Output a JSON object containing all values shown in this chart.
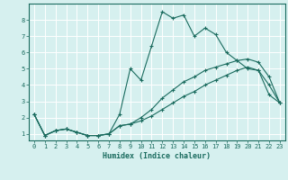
{
  "xlabel": "Humidex (Indice chaleur)",
  "ylabel": "",
  "background_color": "#d6f0ef",
  "grid_color": "#ffffff",
  "line_color": "#1a6b5e",
  "xlim": [
    -0.5,
    23.5
  ],
  "ylim": [
    0.6,
    9.0
  ],
  "yticks": [
    1,
    2,
    3,
    4,
    5,
    6,
    7,
    8
  ],
  "xticks": [
    0,
    1,
    2,
    3,
    4,
    5,
    6,
    7,
    8,
    9,
    10,
    11,
    12,
    13,
    14,
    15,
    16,
    17,
    18,
    19,
    20,
    21,
    22,
    23
  ],
  "line1_x": [
    0,
    1,
    2,
    3,
    4,
    5,
    6,
    7,
    8,
    9,
    10,
    11,
    12,
    13,
    14,
    15,
    16,
    17,
    18,
    19,
    20,
    21,
    22,
    23
  ],
  "line1_y": [
    2.2,
    0.9,
    1.2,
    1.3,
    1.1,
    0.9,
    0.9,
    1.0,
    2.2,
    5.0,
    4.3,
    6.4,
    8.5,
    8.1,
    8.3,
    7.0,
    7.5,
    7.1,
    6.0,
    5.5,
    5.0,
    4.9,
    3.4,
    2.9
  ],
  "line2_x": [
    0,
    1,
    2,
    3,
    4,
    5,
    6,
    7,
    8,
    9,
    10,
    11,
    12,
    13,
    14,
    15,
    16,
    17,
    18,
    19,
    20,
    21,
    22,
    23
  ],
  "line2_y": [
    2.2,
    0.9,
    1.2,
    1.3,
    1.1,
    0.9,
    0.9,
    1.0,
    1.5,
    1.6,
    2.0,
    2.5,
    3.2,
    3.7,
    4.2,
    4.5,
    4.9,
    5.1,
    5.3,
    5.5,
    5.6,
    5.4,
    4.5,
    2.9
  ],
  "line3_x": [
    0,
    1,
    2,
    3,
    4,
    5,
    6,
    7,
    8,
    9,
    10,
    11,
    12,
    13,
    14,
    15,
    16,
    17,
    18,
    19,
    20,
    21,
    22,
    23
  ],
  "line3_y": [
    2.2,
    0.9,
    1.2,
    1.3,
    1.1,
    0.9,
    0.9,
    1.0,
    1.5,
    1.6,
    1.8,
    2.1,
    2.5,
    2.9,
    3.3,
    3.6,
    4.0,
    4.3,
    4.6,
    4.9,
    5.1,
    4.9,
    4.0,
    2.9
  ]
}
